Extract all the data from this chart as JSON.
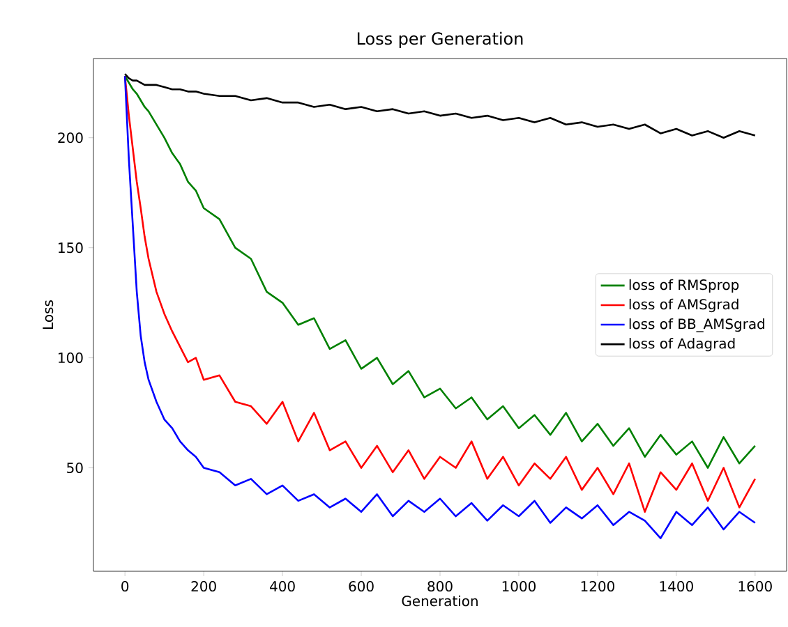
{
  "chart_data": {
    "type": "line",
    "title": "Loss per Generation",
    "xlabel": "Generation",
    "ylabel": "Loss",
    "x": [
      0,
      10,
      20,
      30,
      40,
      50,
      60,
      80,
      100,
      120,
      140,
      160,
      180,
      200,
      240,
      280,
      320,
      360,
      400,
      440,
      480,
      520,
      560,
      600,
      640,
      680,
      720,
      760,
      800,
      840,
      880,
      920,
      960,
      1000,
      1040,
      1080,
      1120,
      1160,
      1200,
      1240,
      1280,
      1320,
      1360,
      1400,
      1440,
      1480,
      1520,
      1560,
      1600
    ],
    "series": [
      {
        "name": "loss of RMSprop",
        "color": "#008000",
        "values": [
          228,
          225,
          222,
          220,
          217,
          214,
          212,
          206,
          200,
          193,
          188,
          180,
          176,
          168,
          163,
          150,
          145,
          130,
          125,
          115,
          118,
          104,
          108,
          95,
          100,
          88,
          94,
          82,
          86,
          77,
          82,
          72,
          78,
          68,
          74,
          65,
          75,
          62,
          70,
          60,
          68,
          55,
          65,
          56,
          62,
          50,
          64,
          52,
          60
        ]
      },
      {
        "name": "loss of AMSgrad",
        "color": "#ff0000",
        "values": [
          228,
          210,
          195,
          180,
          168,
          155,
          145,
          130,
          120,
          112,
          105,
          98,
          100,
          90,
          92,
          80,
          78,
          70,
          80,
          62,
          75,
          58,
          62,
          50,
          60,
          48,
          58,
          45,
          55,
          50,
          62,
          45,
          55,
          42,
          52,
          45,
          55,
          40,
          50,
          38,
          52,
          30,
          48,
          40,
          52,
          35,
          50,
          32,
          45
        ]
      },
      {
        "name": "loss of BB_AMSgrad",
        "color": "#0000ff",
        "values": [
          228,
          190,
          160,
          130,
          110,
          98,
          90,
          80,
          72,
          68,
          62,
          58,
          55,
          50,
          48,
          42,
          45,
          38,
          42,
          35,
          38,
          32,
          36,
          30,
          38,
          28,
          35,
          30,
          36,
          28,
          34,
          26,
          33,
          28,
          35,
          25,
          32,
          27,
          33,
          24,
          30,
          26,
          18,
          30,
          24,
          32,
          22,
          30,
          25
        ]
      },
      {
        "name": "loss of Adagrad",
        "color": "#000000",
        "values": [
          229,
          227,
          226,
          226,
          225,
          224,
          224,
          224,
          223,
          222,
          222,
          221,
          221,
          220,
          219,
          219,
          217,
          218,
          216,
          216,
          214,
          215,
          213,
          214,
          212,
          213,
          211,
          212,
          210,
          211,
          209,
          210,
          208,
          209,
          207,
          209,
          206,
          207,
          205,
          206,
          204,
          206,
          202,
          204,
          201,
          203,
          200,
          203,
          201
        ]
      }
    ],
    "xlim": [
      -80,
      1680
    ],
    "ylim": [
      3,
      236
    ],
    "xticks": [
      0,
      200,
      400,
      600,
      800,
      1000,
      1200,
      1400,
      1600
    ],
    "yticks": [
      50,
      100,
      150,
      200
    ],
    "legend": "right",
    "grid": false,
    "marker": "none",
    "line_style": "solid"
  }
}
